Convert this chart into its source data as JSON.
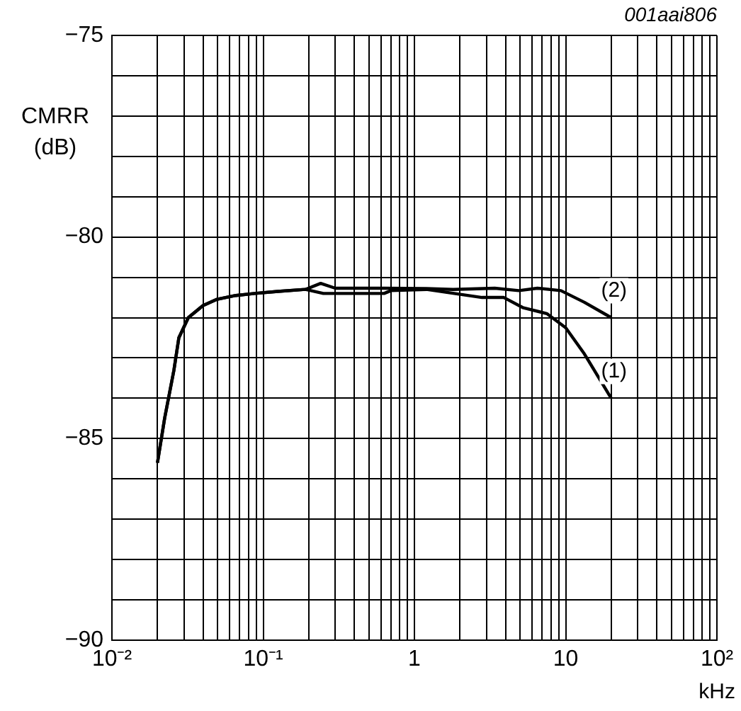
{
  "chart_data": {
    "type": "line",
    "ylabel": "CMRR (dB)",
    "xlabel": "kHz",
    "annotations": [
      "001aai806"
    ],
    "log": "x",
    "grid": true,
    "legend": false,
    "marker": "none",
    "line_style": "solid",
    "xlim": [
      0.01,
      100
    ],
    "xticks": [
      {
        "value": 0.01,
        "label": "10⁻²"
      },
      {
        "value": 0.02,
        "label": null
      },
      {
        "value": 0.03,
        "label": null
      },
      {
        "value": 0.04,
        "label": null
      },
      {
        "value": 0.05,
        "label": null
      },
      {
        "value": 0.06,
        "label": null
      },
      {
        "value": 0.07,
        "label": null
      },
      {
        "value": 0.08,
        "label": null
      },
      {
        "value": 0.09,
        "label": null
      },
      {
        "value": 0.1,
        "label": "10⁻¹"
      },
      {
        "value": 0.2,
        "label": null
      },
      {
        "value": 0.3,
        "label": null
      },
      {
        "value": 0.4,
        "label": null
      },
      {
        "value": 0.5,
        "label": null
      },
      {
        "value": 0.6,
        "label": null
      },
      {
        "value": 0.7,
        "label": null
      },
      {
        "value": 0.8,
        "label": null
      },
      {
        "value": 0.9,
        "label": null
      },
      1,
      {
        "value": 2,
        "label": null
      },
      {
        "value": 3,
        "label": null
      },
      {
        "value": 4,
        "label": null
      },
      {
        "value": 5,
        "label": null
      },
      {
        "value": 6,
        "label": null
      },
      {
        "value": 7,
        "label": null
      },
      {
        "value": 8,
        "label": null
      },
      {
        "value": 9,
        "label": null
      },
      10,
      {
        "value": 20,
        "label": null
      },
      {
        "value": 30,
        "label": null
      },
      {
        "value": 40,
        "label": null
      },
      {
        "value": 50,
        "label": null
      },
      {
        "value": 60,
        "label": null
      },
      {
        "value": 70,
        "label": null
      },
      {
        "value": 80,
        "label": null
      },
      {
        "value": 90,
        "label": null
      },
      {
        "value": 100,
        "label": "10²"
      }
    ],
    "ylim": [
      -90,
      -75
    ],
    "yticks": [
      {
        "value": -90,
        "label": "−90"
      },
      {
        "value": -89,
        "label": null
      },
      {
        "value": -88,
        "label": null
      },
      {
        "value": -87,
        "label": null
      },
      {
        "value": -86,
        "label": null
      },
      {
        "value": -85,
        "label": "−85"
      },
      {
        "value": -84,
        "label": null
      },
      {
        "value": -83,
        "label": null
      },
      {
        "value": -82,
        "label": null
      },
      {
        "value": -81,
        "label": null
      },
      {
        "value": -80,
        "label": "−80"
      },
      {
        "value": -79,
        "label": null
      },
      {
        "value": -78,
        "label": null
      },
      {
        "value": -77,
        "label": null
      },
      {
        "value": -76,
        "label": null
      },
      {
        "value": -75,
        "label": "−75"
      }
    ],
    "series": [
      {
        "name": "(1)",
        "color": "#000000",
        "x": [
          0.02,
          0.0223,
          0.0257,
          0.0277,
          0.032,
          0.04,
          0.049,
          0.066,
          0.088,
          0.125,
          0.19,
          0.25,
          0.63,
          0.7,
          1.2,
          2.8,
          3.9,
          5.2,
          7.5,
          10,
          13.3,
          20
        ],
        "values": [
          -85.6,
          -84.5,
          -83.3,
          -82.5,
          -82.0,
          -81.7,
          -81.55,
          -81.45,
          -81.4,
          -81.35,
          -81.3,
          -81.4,
          -81.4,
          -81.33,
          -81.3,
          -81.5,
          -81.5,
          -81.75,
          -81.9,
          -82.25,
          -82.9,
          -84.0
        ]
      },
      {
        "name": "(2)",
        "color": "#000000",
        "x": [
          0.02,
          0.0223,
          0.0257,
          0.0277,
          0.032,
          0.04,
          0.049,
          0.066,
          0.088,
          0.125,
          0.19,
          0.24,
          0.3,
          0.63,
          1.2,
          1.8,
          3.4,
          4.9,
          6.5,
          9.3,
          13.3,
          20
        ],
        "values": [
          -85.6,
          -84.5,
          -83.3,
          -82.5,
          -82.0,
          -81.7,
          -81.55,
          -81.45,
          -81.4,
          -81.35,
          -81.3,
          -81.15,
          -81.27,
          -81.27,
          -81.28,
          -81.3,
          -81.27,
          -81.33,
          -81.27,
          -81.33,
          -81.62,
          -82.0
        ]
      }
    ]
  }
}
